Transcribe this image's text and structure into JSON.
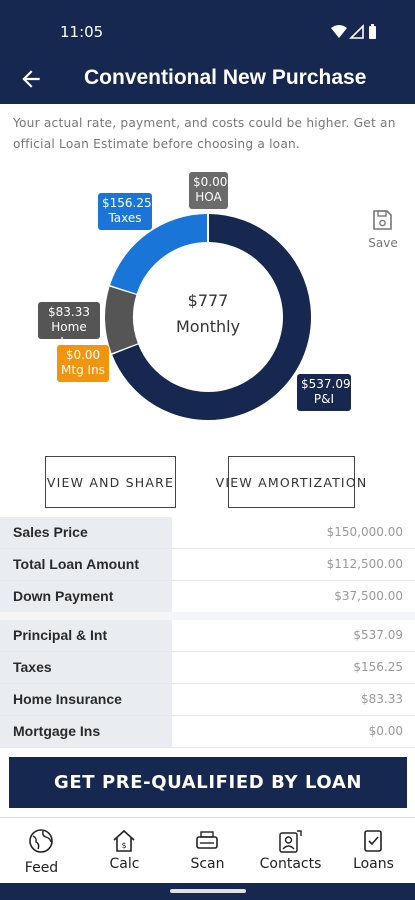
{
  "status": {
    "time": "11:05"
  },
  "header": {
    "title": "Conventional New Purchase"
  },
  "disclaimer": "Your actual rate, payment, and costs could be higher. Get an official Loan Estimate before choosing a loan.",
  "chart_data": {
    "type": "pie",
    "center": {
      "amount": "$777",
      "label": "Monthly"
    },
    "slices": [
      {
        "name": "P&I",
        "label": "$537.09",
        "value": 537.09,
        "color": "#16284f"
      },
      {
        "name": "Mtg Ins",
        "label": "$0.00",
        "value": 0.0,
        "color": "#f2940d"
      },
      {
        "name": "Home Ins",
        "label": "$83.33",
        "value": 83.33,
        "color": "#555555"
      },
      {
        "name": "Taxes",
        "label": "$156.25",
        "value": 156.25,
        "color": "#1976d8"
      },
      {
        "name": "HOA",
        "label": "$0.00",
        "value": 0.0,
        "color": "#6b6b6b"
      }
    ]
  },
  "save_label": "Save",
  "buttons": {
    "share": "VIEW AND SHARE",
    "amortization": "VIEW AMORTIZATION"
  },
  "summary": [
    {
      "label": "Sales Price",
      "value": "$150,000.00"
    },
    {
      "label": "Total Loan Amount",
      "value": "$112,500.00"
    },
    {
      "label": "Down Payment",
      "value": "$37,500.00"
    }
  ],
  "payment": [
    {
      "label": "Principal & Int",
      "value": "$537.09"
    },
    {
      "label": "Taxes",
      "value": "$156.25"
    },
    {
      "label": "Home Insurance",
      "value": "$83.33"
    },
    {
      "label": "Mortgage Ins",
      "value": "$0.00"
    }
  ],
  "cta": "GET PRE-QUALIFIED BY LOAN",
  "nav": {
    "feed": "Feed",
    "calc": "Calc",
    "scan": "Scan",
    "contacts": "Contacts",
    "loans": "Loans"
  },
  "colors": {
    "navy": "#16284f",
    "blue": "#1976d8",
    "orange": "#f2940d",
    "gray": "#6b6b6b"
  }
}
